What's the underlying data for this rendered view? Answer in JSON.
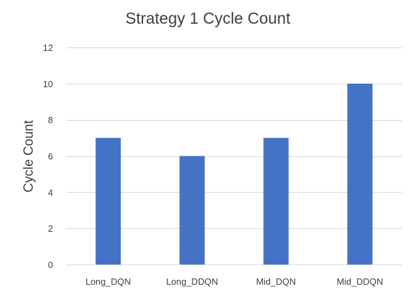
{
  "chart_data": {
    "type": "bar",
    "title": "Strategy 1 Cycle Count",
    "xlabel": "",
    "ylabel": "Cycle Count",
    "categories": [
      "Long_DQN",
      "Long_DDQN",
      "Mid_DQN",
      "Mid_DDQN"
    ],
    "values": [
      7,
      6,
      7,
      10
    ],
    "ylim": [
      0,
      12
    ],
    "yticks": [
      0,
      2,
      4,
      6,
      8,
      10,
      12
    ],
    "grid": true,
    "legend": "none",
    "bar_color": "#4472c4"
  }
}
